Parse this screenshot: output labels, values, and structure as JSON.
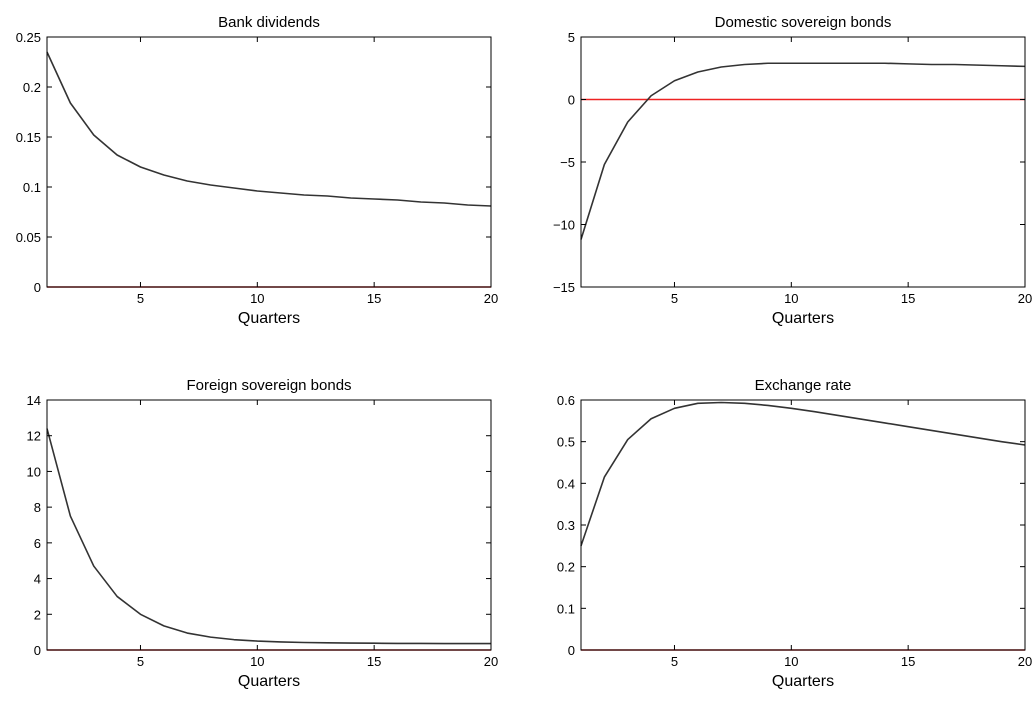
{
  "chart_data": [
    {
      "type": "line",
      "title": "Bank dividends",
      "xlabel": "Quarters",
      "ylabel": "",
      "xlim": [
        1,
        20
      ],
      "ylim": [
        0,
        0.25
      ],
      "xticks": [
        5,
        10,
        15,
        20
      ],
      "yticks": [
        0,
        0.05,
        0.1,
        0.15,
        0.2,
        0.25
      ],
      "ytick_labels": [
        "0",
        "0.05",
        "0.1",
        "0.15",
        "0.2",
        "0.25"
      ],
      "zero_line_color": "#cc2222",
      "line_color": "#333333",
      "x": [
        1,
        2,
        3,
        4,
        5,
        6,
        7,
        8,
        9,
        10,
        11,
        12,
        13,
        14,
        15,
        16,
        17,
        18,
        19,
        20
      ],
      "values": [
        0.235,
        0.184,
        0.152,
        0.132,
        0.12,
        0.112,
        0.106,
        0.102,
        0.099,
        0.096,
        0.094,
        0.092,
        0.091,
        0.089,
        0.088,
        0.087,
        0.085,
        0.084,
        0.082,
        0.081
      ]
    },
    {
      "type": "line",
      "title": "Domestic sovereign bonds",
      "xlabel": "Quarters",
      "ylabel": "",
      "xlim": [
        1,
        20
      ],
      "ylim": [
        -15,
        5
      ],
      "xticks": [
        5,
        10,
        15,
        20
      ],
      "yticks": [
        -15,
        -10,
        -5,
        0,
        5
      ],
      "ytick_labels": [
        "−15",
        "−10",
        "−5",
        "0",
        "5"
      ],
      "zero_line_color": "#ee2222",
      "line_color": "#333333",
      "x": [
        1,
        2,
        3,
        4,
        5,
        6,
        7,
        8,
        9,
        10,
        11,
        12,
        13,
        14,
        15,
        16,
        17,
        18,
        19,
        20
      ],
      "values": [
        -11.2,
        -5.2,
        -1.8,
        0.3,
        1.5,
        2.2,
        2.6,
        2.8,
        2.9,
        2.9,
        2.9,
        2.9,
        2.9,
        2.9,
        2.85,
        2.8,
        2.8,
        2.75,
        2.7,
        2.65
      ]
    },
    {
      "type": "line",
      "title": "Foreign sovereign bonds",
      "xlabel": "Quarters",
      "ylabel": "",
      "xlim": [
        1,
        20
      ],
      "ylim": [
        0,
        14
      ],
      "xticks": [
        5,
        10,
        15,
        20
      ],
      "yticks": [
        0,
        2,
        4,
        6,
        8,
        10,
        12,
        14
      ],
      "ytick_labels": [
        "0",
        "2",
        "4",
        "6",
        "8",
        "10",
        "12",
        "14"
      ],
      "zero_line_color": "#cc2222",
      "line_color": "#333333",
      "x": [
        1,
        2,
        3,
        4,
        5,
        6,
        7,
        8,
        9,
        10,
        11,
        12,
        13,
        14,
        15,
        16,
        17,
        18,
        19,
        20
      ],
      "values": [
        12.4,
        7.5,
        4.7,
        3.0,
        2.0,
        1.35,
        0.95,
        0.72,
        0.58,
        0.5,
        0.45,
        0.42,
        0.4,
        0.39,
        0.38,
        0.37,
        0.37,
        0.36,
        0.36,
        0.36
      ]
    },
    {
      "type": "line",
      "title": "Exchange rate",
      "xlabel": "Quarters",
      "ylabel": "",
      "xlim": [
        1,
        20
      ],
      "ylim": [
        0,
        0.6
      ],
      "xticks": [
        5,
        10,
        15,
        20
      ],
      "yticks": [
        0,
        0.1,
        0.2,
        0.3,
        0.4,
        0.5,
        0.6
      ],
      "ytick_labels": [
        "0",
        "0.1",
        "0.2",
        "0.3",
        "0.4",
        "0.5",
        "0.6"
      ],
      "zero_line_color": "#cc2222",
      "line_color": "#333333",
      "x": [
        1,
        2,
        3,
        4,
        5,
        6,
        7,
        8,
        9,
        10,
        11,
        12,
        13,
        14,
        15,
        16,
        17,
        18,
        19,
        20
      ],
      "values": [
        0.25,
        0.415,
        0.505,
        0.555,
        0.58,
        0.592,
        0.594,
        0.592,
        0.587,
        0.58,
        0.572,
        0.563,
        0.554,
        0.545,
        0.536,
        0.527,
        0.518,
        0.509,
        0.5,
        0.492
      ]
    }
  ]
}
